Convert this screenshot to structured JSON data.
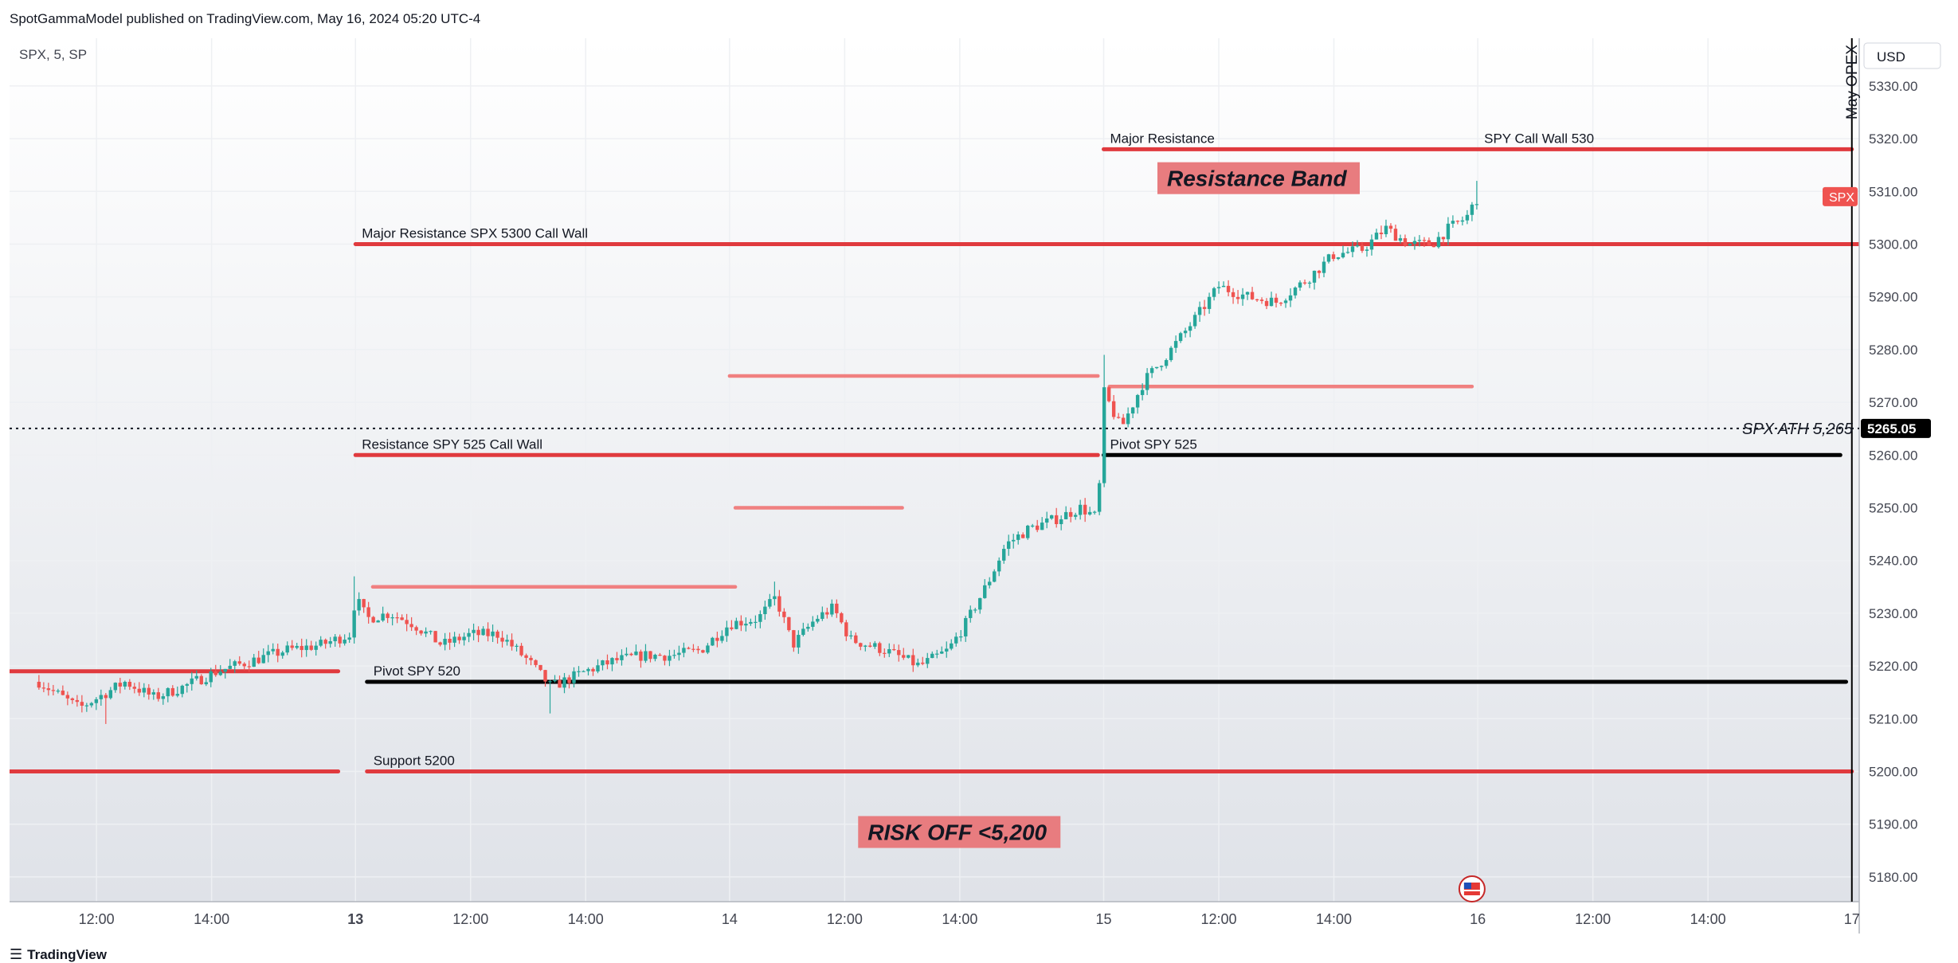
{
  "header": {
    "publisher_line": "SpotGammaModel published on TradingView.com, May 16, 2024 05:20 UTC-4"
  },
  "footer": {
    "brand": "TradingView",
    "logo_icon": "tradingview-logo-icon"
  },
  "colors": {
    "up": "#26a69a",
    "down": "#ef5350",
    "level_red": "#e03a3e",
    "level_light": "#f08080",
    "level_black": "#000000",
    "grid": "#eef0f3",
    "axis_text": "#434651",
    "bg_top": "#ffffff",
    "bg_bottom": "#dfe2e8",
    "annotation_fill": "#e87c7f"
  },
  "chart_data": {
    "type": "candlestick",
    "symbol_label": "SPX, 5, SP",
    "currency_label": "USD",
    "ylim": [
      5175,
      5345
    ],
    "y_ticks": [
      5180,
      5190,
      5200,
      5210,
      5220,
      5230,
      5240,
      5250,
      5260,
      5270,
      5280,
      5290,
      5300,
      5310,
      5320,
      5330
    ],
    "x_ticks": [
      {
        "t": 0.5,
        "label": "12:00",
        "bold": false
      },
      {
        "t": 2.5,
        "label": "14:00",
        "bold": false
      },
      {
        "t": 5.0,
        "label": "13",
        "bold": true
      },
      {
        "t": 7.0,
        "label": "12:00",
        "bold": false
      },
      {
        "t": 9.0,
        "label": "14:00",
        "bold": false
      },
      {
        "t": 11.5,
        "label": "14",
        "bold": false
      },
      {
        "t": 13.5,
        "label": "12:00",
        "bold": false
      },
      {
        "t": 15.5,
        "label": "14:00",
        "bold": false
      },
      {
        "t": 18.0,
        "label": "15",
        "bold": false
      },
      {
        "t": 20.0,
        "label": "12:00",
        "bold": false
      },
      {
        "t": 22.0,
        "label": "14:00",
        "bold": false
      },
      {
        "t": 24.5,
        "label": "16",
        "bold": false
      },
      {
        "t": 26.5,
        "label": "12:00",
        "bold": false
      },
      {
        "t": 28.5,
        "label": "14:00",
        "bold": false
      },
      {
        "t": 31.0,
        "label": "17",
        "bold": false
      }
    ],
    "price_path": [
      {
        "t": -0.5,
        "v": 5217
      },
      {
        "t": 0.2,
        "v": 5212
      },
      {
        "t": 1.0,
        "v": 5217
      },
      {
        "t": 1.5,
        "v": 5214
      },
      {
        "t": 2.0,
        "v": 5216
      },
      {
        "t": 2.6,
        "v": 5219
      },
      {
        "t": 3.2,
        "v": 5221
      },
      {
        "t": 3.8,
        "v": 5223
      },
      {
        "t": 4.4,
        "v": 5224
      },
      {
        "t": 4.9,
        "v": 5226
      },
      {
        "t": 5.0,
        "v": 5233
      },
      {
        "t": 5.2,
        "v": 5229
      },
      {
        "t": 5.6,
        "v": 5230
      },
      {
        "t": 6.0,
        "v": 5228
      },
      {
        "t": 6.5,
        "v": 5224
      },
      {
        "t": 7.0,
        "v": 5226
      },
      {
        "t": 7.5,
        "v": 5226
      },
      {
        "t": 8.0,
        "v": 5221
      },
      {
        "t": 8.4,
        "v": 5216
      },
      {
        "t": 9.0,
        "v": 5219
      },
      {
        "t": 9.5,
        "v": 5221
      },
      {
        "t": 10.0,
        "v": 5222
      },
      {
        "t": 10.5,
        "v": 5222
      },
      {
        "t": 11.0,
        "v": 5223
      },
      {
        "t": 11.5,
        "v": 5228
      },
      {
        "t": 12.0,
        "v": 5229
      },
      {
        "t": 12.3,
        "v": 5233
      },
      {
        "t": 12.6,
        "v": 5224
      },
      {
        "t": 13.0,
        "v": 5229
      },
      {
        "t": 13.3,
        "v": 5231
      },
      {
        "t": 13.6,
        "v": 5225
      },
      {
        "t": 14.2,
        "v": 5223
      },
      {
        "t": 14.8,
        "v": 5220
      },
      {
        "t": 15.3,
        "v": 5223
      },
      {
        "t": 15.6,
        "v": 5228
      },
      {
        "t": 16.0,
        "v": 5236
      },
      {
        "t": 16.3,
        "v": 5243
      },
      {
        "t": 16.7,
        "v": 5246
      },
      {
        "t": 17.2,
        "v": 5248
      },
      {
        "t": 17.6,
        "v": 5250
      },
      {
        "t": 17.9,
        "v": 5248
      },
      {
        "t": 18.0,
        "v": 5272
      },
      {
        "t": 18.3,
        "v": 5265
      },
      {
        "t": 18.7,
        "v": 5274
      },
      {
        "t": 19.1,
        "v": 5279
      },
      {
        "t": 19.6,
        "v": 5286
      },
      {
        "t": 20.0,
        "v": 5292
      },
      {
        "t": 20.5,
        "v": 5290
      },
      {
        "t": 21.0,
        "v": 5289
      },
      {
        "t": 21.5,
        "v": 5293
      },
      {
        "t": 22.0,
        "v": 5298
      },
      {
        "t": 22.5,
        "v": 5299
      },
      {
        "t": 22.9,
        "v": 5303
      },
      {
        "t": 23.3,
        "v": 5300
      },
      {
        "t": 23.7,
        "v": 5300
      },
      {
        "t": 24.0,
        "v": 5303
      },
      {
        "t": 24.3,
        "v": 5305
      },
      {
        "t": 24.5,
        "v": 5309
      }
    ],
    "wick_extremes": [
      {
        "t": 0.7,
        "low": 5209
      },
      {
        "t": 5.0,
        "high": 5237
      },
      {
        "t": 8.4,
        "low": 5211
      },
      {
        "t": 12.3,
        "high": 5236
      },
      {
        "t": 18.0,
        "high": 5279,
        "low": 5264
      },
      {
        "t": 24.5,
        "high": 5312
      }
    ],
    "last_price_label": "5265.05",
    "symbol_badge": "SPX",
    "ath_label": "SPX ATH 5,265",
    "ath_value": 5265.05,
    "levels": [
      {
        "label": "Major Resistance SPX 5300 Call Wall",
        "value": 5300,
        "t_start": 5.0,
        "t_end": 31.2,
        "style": "red"
      },
      {
        "label": "Major Resistance",
        "value": 5318,
        "t_start": 18.0,
        "t_end": 31.0,
        "style": "red"
      },
      {
        "label": "SPY Call Wall 530",
        "value": 5318,
        "t_start": 24.5,
        "t_end": 24.5,
        "style": "label-only"
      },
      {
        "label": "Resistance SPY 525 Call Wall",
        "value": 5260,
        "t_start": 5.0,
        "t_end": 17.9,
        "style": "red"
      },
      {
        "label": "Pivot SPY 525",
        "value": 5260,
        "t_start": 18.0,
        "t_end": 30.8,
        "style": "black"
      },
      {
        "label": "Pivot SPY 520",
        "value": 5217,
        "t_start": 5.2,
        "t_end": 30.9,
        "style": "black"
      },
      {
        "label": "",
        "value": 5219,
        "t_start": -1.0,
        "t_end": 4.7,
        "style": "red"
      },
      {
        "label": "Support 5200",
        "value": 5200,
        "t_start": 5.2,
        "t_end": 31.0,
        "style": "red"
      },
      {
        "label": "",
        "value": 5200,
        "t_start": -1.0,
        "t_end": 4.7,
        "style": "red"
      },
      {
        "label": "",
        "value": 5275,
        "t_start": 11.5,
        "t_end": 17.9,
        "style": "light"
      },
      {
        "label": "",
        "value": 5273,
        "t_start": 18.1,
        "t_end": 24.4,
        "style": "light"
      },
      {
        "label": "",
        "value": 5250,
        "t_start": 11.6,
        "t_end": 14.5,
        "style": "light"
      },
      {
        "label": "",
        "value": 5235,
        "t_start": 5.3,
        "t_end": 11.6,
        "style": "light"
      }
    ],
    "annotations": [
      {
        "text": "Resistance Band",
        "t": 19.1,
        "value": 5311
      },
      {
        "text": "RISK OFF <5,200",
        "t": 13.9,
        "value": 5187
      }
    ],
    "event_vline": {
      "label": "May OPEX",
      "t": 31.0
    },
    "event_marker_icon": "us-flag-event-icon"
  }
}
